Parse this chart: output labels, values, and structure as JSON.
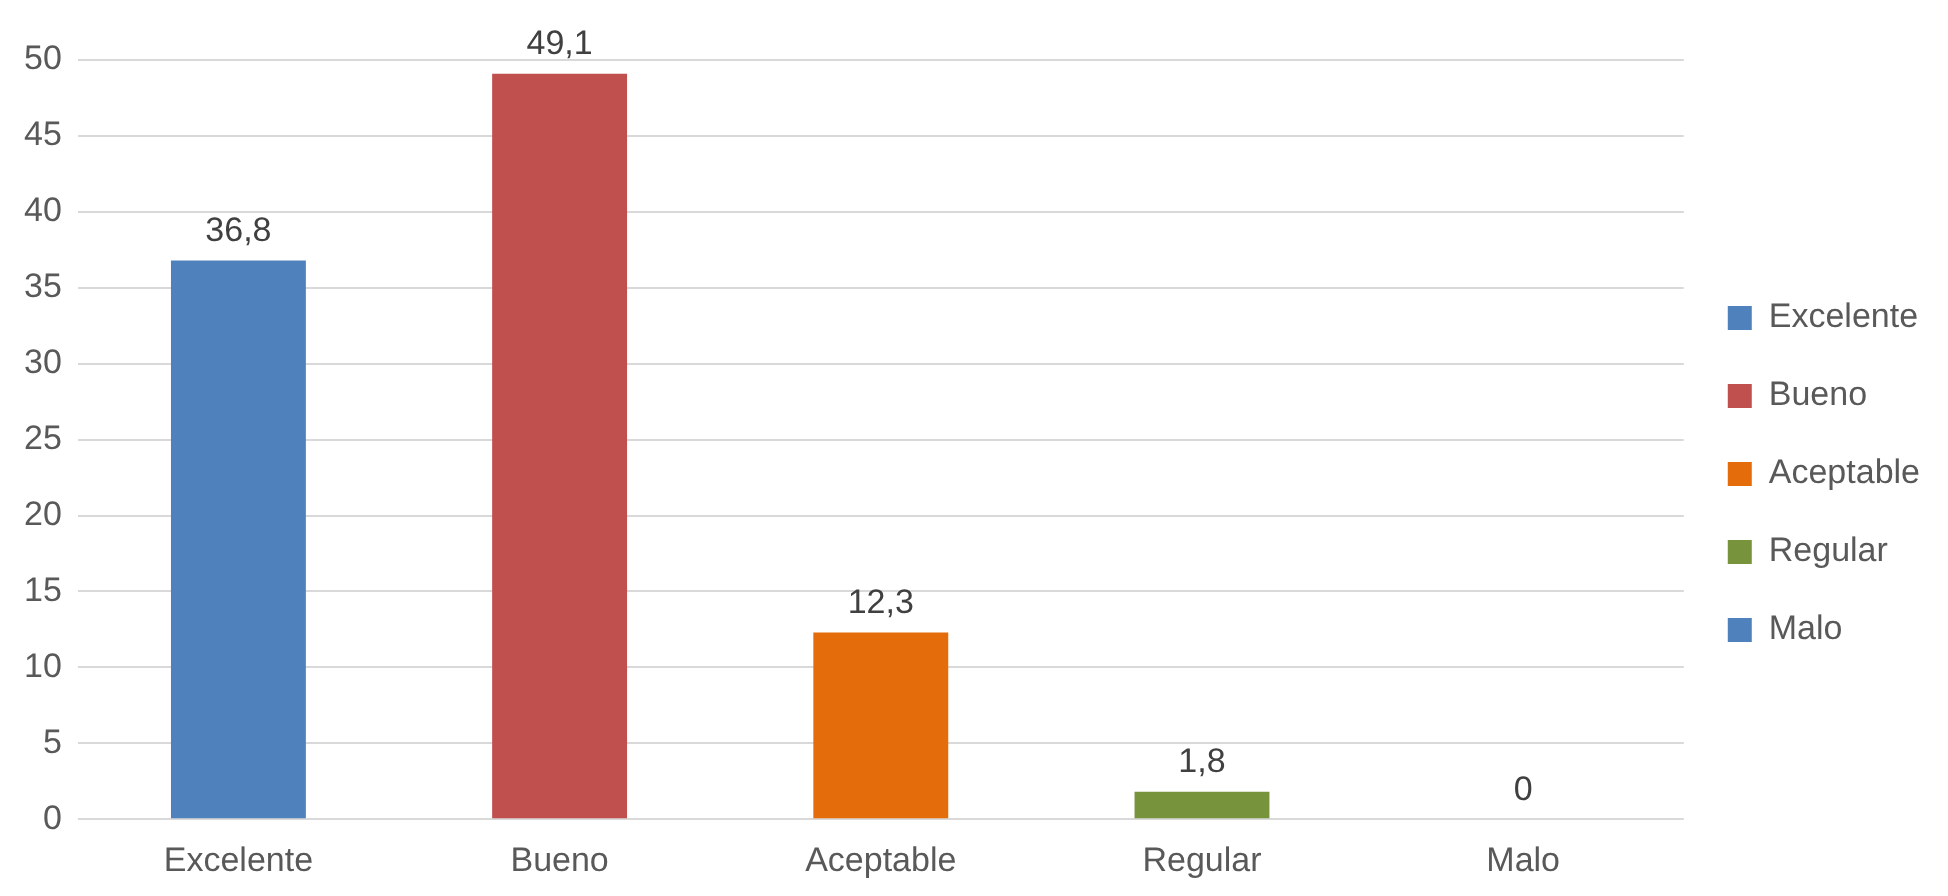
{
  "chart_data": {
    "type": "bar",
    "categories": [
      "Excelente",
      "Bueno",
      "Aceptable",
      "Regular",
      "Malo"
    ],
    "series": [
      {
        "name": "Excelente",
        "color": "#4f81bd",
        "values": [
          36.8,
          null,
          null,
          null,
          null
        ],
        "value_labels": [
          "36,8",
          null,
          null,
          null,
          null
        ]
      },
      {
        "name": "Bueno",
        "color": "#c0504d",
        "values": [
          null,
          49.1,
          null,
          null,
          null
        ],
        "value_labels": [
          null,
          "49,1",
          null,
          null,
          null
        ]
      },
      {
        "name": "Aceptable",
        "color": "#e46c0a",
        "values": [
          null,
          null,
          12.3,
          null,
          null
        ],
        "value_labels": [
          null,
          null,
          "12,3",
          null,
          null
        ]
      },
      {
        "name": "Regular",
        "color": "#77933c",
        "values": [
          null,
          null,
          null,
          1.8,
          null
        ],
        "value_labels": [
          null,
          null,
          null,
          "1,8",
          null
        ]
      },
      {
        "name": "Malo",
        "color": "#4f81bd",
        "values": [
          null,
          null,
          null,
          null,
          0
        ],
        "value_labels": [
          null,
          null,
          null,
          null,
          "0"
        ]
      }
    ],
    "ylim": [
      0,
      50
    ],
    "yticks": [
      0,
      5,
      10,
      15,
      20,
      25,
      30,
      35,
      40,
      45,
      50
    ],
    "grid": "y",
    "legend": "right"
  }
}
